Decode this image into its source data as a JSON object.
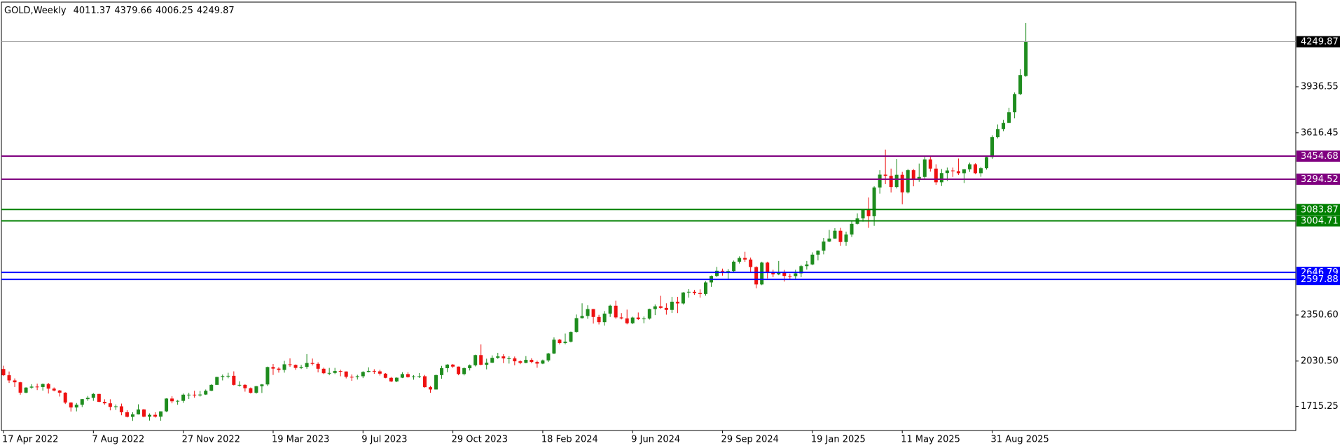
{
  "chart_data": {
    "type": "candlestick",
    "title": "GOLD,Weekly",
    "up_color": "#1e8c1e",
    "down_color": "#ee1111",
    "last_price_color": "#000000",
    "ylim": [
      1548,
      4525
    ],
    "yticks": [
      1715.25,
      {
        "value": 2030.5,
        "label": "2030.50"
      },
      {
        "value": 2350.6,
        "label": "2350.60"
      },
      3616.45,
      3936.55
    ],
    "levels": [
      {
        "value": 3454.68,
        "color": "#800080"
      },
      {
        "value": 3294.52,
        "color": "#800080"
      },
      {
        "value": 3083.87,
        "color": "#008000"
      },
      {
        "value": 3004.71,
        "color": "#008000"
      },
      {
        "value": 2646.79,
        "color": "#0000ff"
      },
      {
        "value": 2597.88,
        "color": "#0000ff"
      }
    ],
    "categories": [
      "17 Apr 2022",
      null,
      null,
      null,
      null,
      null,
      null,
      null,
      null,
      null,
      null,
      null,
      null,
      null,
      null,
      null,
      "7 Aug 2022",
      null,
      null,
      null,
      null,
      null,
      null,
      null,
      null,
      null,
      null,
      null,
      null,
      null,
      null,
      null,
      "27 Nov 2022",
      null,
      null,
      null,
      null,
      null,
      null,
      null,
      null,
      null,
      null,
      null,
      null,
      null,
      null,
      null,
      "19 Mar 2023",
      null,
      null,
      null,
      null,
      null,
      null,
      null,
      null,
      null,
      null,
      null,
      null,
      null,
      null,
      null,
      "9 Jul 2023",
      null,
      null,
      null,
      null,
      null,
      null,
      null,
      null,
      null,
      null,
      null,
      null,
      null,
      null,
      null,
      "29 Oct 2023",
      null,
      null,
      null,
      null,
      null,
      null,
      null,
      null,
      null,
      null,
      null,
      null,
      null,
      null,
      null,
      "18 Feb 2024",
      null,
      null,
      null,
      null,
      null,
      null,
      null,
      null,
      null,
      null,
      null,
      null,
      null,
      null,
      null,
      "9 Jun 2024",
      null,
      null,
      null,
      null,
      null,
      null,
      null,
      null,
      null,
      null,
      null,
      null,
      null,
      null,
      null,
      "29 Sep 2024",
      null,
      null,
      null,
      null,
      null,
      null,
      null,
      null,
      null,
      null,
      null,
      null,
      null,
      null,
      null,
      "19 Jan 2025",
      null,
      null,
      null,
      null,
      null,
      null,
      null,
      null,
      null,
      null,
      null,
      null,
      null,
      null,
      null,
      "11 May 2025",
      null,
      null,
      null,
      null,
      null,
      null,
      null,
      null,
      null,
      null,
      null,
      null,
      null,
      null,
      null,
      "31 Aug 2025",
      null,
      null,
      null,
      null,
      null,
      null
    ],
    "candles": [
      [
        1975,
        1998,
        1926,
        1932
      ],
      [
        1932,
        1958,
        1878,
        1896
      ],
      [
        1896,
        1910,
        1850,
        1883
      ],
      [
        1883,
        1886,
        1797,
        1811
      ],
      [
        1811,
        1849,
        1807,
        1846
      ],
      [
        1846,
        1870,
        1838,
        1853
      ],
      [
        1853,
        1874,
        1829,
        1850
      ],
      [
        1850,
        1875,
        1825,
        1871
      ],
      [
        1871,
        1879,
        1805,
        1839
      ],
      [
        1839,
        1847,
        1820,
        1826
      ],
      [
        1826,
        1830,
        1784,
        1811
      ],
      [
        1811,
        1814,
        1732,
        1742
      ],
      [
        1742,
        1745,
        1680,
        1708
      ],
      [
        1708,
        1739,
        1681,
        1727
      ],
      [
        1727,
        1767,
        1711,
        1766
      ],
      [
        1766,
        1788,
        1754,
        1775
      ],
      [
        1775,
        1808,
        1754,
        1802
      ],
      [
        1802,
        1803,
        1745,
        1747
      ],
      [
        1747,
        1765,
        1728,
        1737
      ],
      [
        1737,
        1765,
        1688,
        1712
      ],
      [
        1712,
        1729,
        1691,
        1716
      ],
      [
        1716,
        1735,
        1654,
        1675
      ],
      [
        1675,
        1689,
        1639,
        1643
      ],
      [
        1643,
        1675,
        1615,
        1660
      ],
      [
        1660,
        1730,
        1659,
        1694
      ],
      [
        1694,
        1698,
        1640,
        1644
      ],
      [
        1644,
        1667,
        1617,
        1657
      ],
      [
        1657,
        1675,
        1638,
        1644
      ],
      [
        1644,
        1681,
        1616,
        1681
      ],
      [
        1681,
        1772,
        1676,
        1770
      ],
      [
        1770,
        1786,
        1737,
        1751
      ],
      [
        1751,
        1760,
        1727,
        1754
      ],
      [
        1754,
        1805,
        1740,
        1797
      ],
      [
        1797,
        1810,
        1767,
        1797
      ],
      [
        1797,
        1824,
        1776,
        1792
      ],
      [
        1792,
        1823,
        1784,
        1798
      ],
      [
        1798,
        1833,
        1795,
        1824
      ],
      [
        1824,
        1870,
        1822,
        1865
      ],
      [
        1865,
        1921,
        1866,
        1920
      ],
      [
        1920,
        1937,
        1896,
        1926
      ],
      [
        1926,
        1949,
        1911,
        1928
      ],
      [
        1928,
        1959,
        1861,
        1865
      ],
      [
        1865,
        1890,
        1853,
        1865
      ],
      [
        1865,
        1870,
        1818,
        1842
      ],
      [
        1842,
        1847,
        1805,
        1810
      ],
      [
        1810,
        1858,
        1804,
        1856
      ],
      [
        1856,
        1871,
        1809,
        1868
      ],
      [
        1868,
        1992,
        1858,
        1989
      ],
      [
        1989,
        2010,
        1934,
        1978
      ],
      [
        1978,
        1988,
        1950,
        1969
      ],
      [
        1969,
        2032,
        1950,
        2008
      ],
      [
        2008,
        2049,
        1991,
        2004
      ],
      [
        2004,
        2007,
        1970,
        1983
      ],
      [
        1983,
        2004,
        1975,
        1990
      ],
      [
        1990,
        2079,
        1977,
        2017
      ],
      [
        2017,
        2048,
        2000,
        2011
      ],
      [
        2011,
        2022,
        1952,
        1977
      ],
      [
        1977,
        1985,
        1940,
        1946
      ],
      [
        1946,
        1983,
        1932,
        1948
      ],
      [
        1948,
        1983,
        1940,
        1961
      ],
      [
        1961,
        1971,
        1925,
        1958
      ],
      [
        1958,
        1959,
        1910,
        1921
      ],
      [
        1921,
        1938,
        1893,
        1919
      ],
      [
        1919,
        1935,
        1902,
        1925
      ],
      [
        1925,
        1960,
        1912,
        1955
      ],
      [
        1955,
        1987,
        1952,
        1962
      ],
      [
        1962,
        1974,
        1942,
        1959
      ],
      [
        1959,
        1970,
        1930,
        1943
      ],
      [
        1943,
        1947,
        1911,
        1914
      ],
      [
        1914,
        1920,
        1885,
        1889
      ],
      [
        1889,
        1917,
        1884,
        1915
      ],
      [
        1915,
        1953,
        1912,
        1940
      ],
      [
        1940,
        1953,
        1915,
        1919
      ],
      [
        1919,
        1933,
        1901,
        1924
      ],
      [
        1924,
        1947,
        1913,
        1925
      ],
      [
        1925,
        1934,
        1846,
        1849
      ],
      [
        1849,
        1858,
        1810,
        1833
      ],
      [
        1833,
        1937,
        1832,
        1933
      ],
      [
        1933,
        1997,
        1908,
        1981
      ],
      [
        1981,
        2009,
        1953,
        2006
      ],
      [
        2006,
        2010,
        1983,
        1992
      ],
      [
        1992,
        1993,
        1932,
        1940
      ],
      [
        1940,
        1988,
        1931,
        1981
      ],
      [
        1981,
        2007,
        1965,
        2001
      ],
      [
        2001,
        2075,
        1993,
        2072
      ],
      [
        2072,
        2146,
        2001,
        2005
      ],
      [
        2005,
        2047,
        1973,
        2019
      ],
      [
        2019,
        2070,
        2017,
        2053
      ],
      [
        2053,
        2088,
        2046,
        2063
      ],
      [
        2063,
        2078,
        2016,
        2049
      ],
      [
        2049,
        2064,
        2013,
        2049
      ],
      [
        2049,
        2062,
        2001,
        2029
      ],
      [
        2029,
        2036,
        2009,
        2018
      ],
      [
        2018,
        2065,
        2015,
        2039
      ],
      [
        2039,
        2050,
        2015,
        2024
      ],
      [
        2024,
        2033,
        1984,
        2013
      ],
      [
        2013,
        2041,
        2009,
        2035
      ],
      [
        2035,
        2088,
        2024,
        2083
      ],
      [
        2083,
        2195,
        2079,
        2179
      ],
      [
        2179,
        2185,
        2146,
        2156
      ],
      [
        2156,
        2222,
        2147,
        2165
      ],
      [
        2165,
        2236,
        2160,
        2233
      ],
      [
        2233,
        2354,
        2228,
        2329
      ],
      [
        2329,
        2432,
        2326,
        2344
      ],
      [
        2344,
        2418,
        2324,
        2392
      ],
      [
        2392,
        2393,
        2291,
        2337
      ],
      [
        2337,
        2352,
        2285,
        2301
      ],
      [
        2301,
        2378,
        2277,
        2360
      ],
      [
        2360,
        2422,
        2337,
        2415
      ],
      [
        2415,
        2450,
        2325,
        2334
      ],
      [
        2334,
        2364,
        2320,
        2327
      ],
      [
        2327,
        2388,
        2286,
        2293
      ],
      [
        2293,
        2339,
        2287,
        2333
      ],
      [
        2333,
        2368,
        2316,
        2322
      ],
      [
        2322,
        2340,
        2293,
        2326
      ],
      [
        2326,
        2395,
        2319,
        2392
      ],
      [
        2392,
        2424,
        2350,
        2411
      ],
      [
        2411,
        2484,
        2393,
        2400
      ],
      [
        2400,
        2432,
        2353,
        2386
      ],
      [
        2386,
        2477,
        2365,
        2443
      ],
      [
        2443,
        2477,
        2364,
        2431
      ],
      [
        2431,
        2510,
        2424,
        2507
      ],
      [
        2507,
        2531,
        2471,
        2512
      ],
      [
        2512,
        2525,
        2491,
        2503
      ],
      [
        2503,
        2529,
        2471,
        2497
      ],
      [
        2497,
        2586,
        2485,
        2577
      ],
      [
        2577,
        2625,
        2546,
        2622
      ],
      [
        2622,
        2685,
        2614,
        2658
      ],
      [
        2658,
        2673,
        2624,
        2653
      ],
      [
        2653,
        2670,
        2603,
        2656
      ],
      [
        2656,
        2729,
        2644,
        2721
      ],
      [
        2721,
        2758,
        2708,
        2747
      ],
      [
        2747,
        2790,
        2720,
        2736
      ],
      [
        2736,
        2750,
        2643,
        2684
      ],
      [
        2684,
        2689,
        2536,
        2563
      ],
      [
        2563,
        2721,
        2558,
        2715
      ],
      [
        2715,
        2721,
        2605,
        2643
      ],
      [
        2643,
        2665,
        2614,
        2633
      ],
      [
        2633,
        2726,
        2627,
        2648
      ],
      [
        2648,
        2664,
        2583,
        2622
      ],
      [
        2622,
        2638,
        2603,
        2621
      ],
      [
        2621,
        2665,
        2596,
        2640
      ],
      [
        2640,
        2698,
        2614,
        2690
      ],
      [
        2690,
        2726,
        2666,
        2702
      ],
      [
        2702,
        2786,
        2697,
        2770
      ],
      [
        2770,
        2800,
        2730,
        2798
      ],
      [
        2798,
        2886,
        2772,
        2861
      ],
      [
        2861,
        2942,
        2857,
        2882
      ],
      [
        2882,
        2954,
        2880,
        2936
      ],
      [
        2936,
        2956,
        2832,
        2858
      ],
      [
        2858,
        2930,
        2832,
        2910
      ],
      [
        2910,
        3004,
        2893,
        2984
      ],
      [
        2984,
        3057,
        2980,
        3022
      ],
      [
        3022,
        3086,
        2999,
        3084
      ],
      [
        3084,
        3167,
        2956,
        3037
      ],
      [
        3037,
        3245,
        2970,
        3237
      ],
      [
        3237,
        3357,
        3194,
        3326
      ],
      [
        3326,
        3500,
        3260,
        3318
      ],
      [
        3318,
        3368,
        3202,
        3240
      ],
      [
        3240,
        3435,
        3230,
        3325
      ],
      [
        3325,
        3345,
        3120,
        3203
      ],
      [
        3203,
        3365,
        3195,
        3357
      ],
      [
        3357,
        3365,
        3245,
        3289
      ],
      [
        3289,
        3403,
        3276,
        3310
      ],
      [
        3310,
        3452,
        3293,
        3432
      ],
      [
        3432,
        3452,
        3347,
        3368
      ],
      [
        3368,
        3398,
        3255,
        3273
      ],
      [
        3273,
        3365,
        3247,
        3337
      ],
      [
        3337,
        3375,
        3282,
        3355
      ],
      [
        3355,
        3375,
        3310,
        3350
      ],
      [
        3350,
        3438,
        3324,
        3336
      ],
      [
        3336,
        3364,
        3268,
        3363
      ],
      [
        3363,
        3409,
        3345,
        3398
      ],
      [
        3398,
        3405,
        3330,
        3336
      ],
      [
        3336,
        3379,
        3311,
        3371
      ],
      [
        3371,
        3453,
        3361,
        3448
      ],
      [
        3448,
        3599,
        3436,
        3586
      ],
      [
        3586,
        3675,
        3578,
        3643
      ],
      [
        3643,
        3707,
        3628,
        3685
      ],
      [
        3685,
        3791,
        3684,
        3760
      ],
      [
        3760,
        3897,
        3717,
        3886
      ],
      [
        3886,
        4059,
        3878,
        4018
      ],
      [
        4011.37,
        4379.66,
        4006.25,
        4249.87
      ]
    ]
  }
}
